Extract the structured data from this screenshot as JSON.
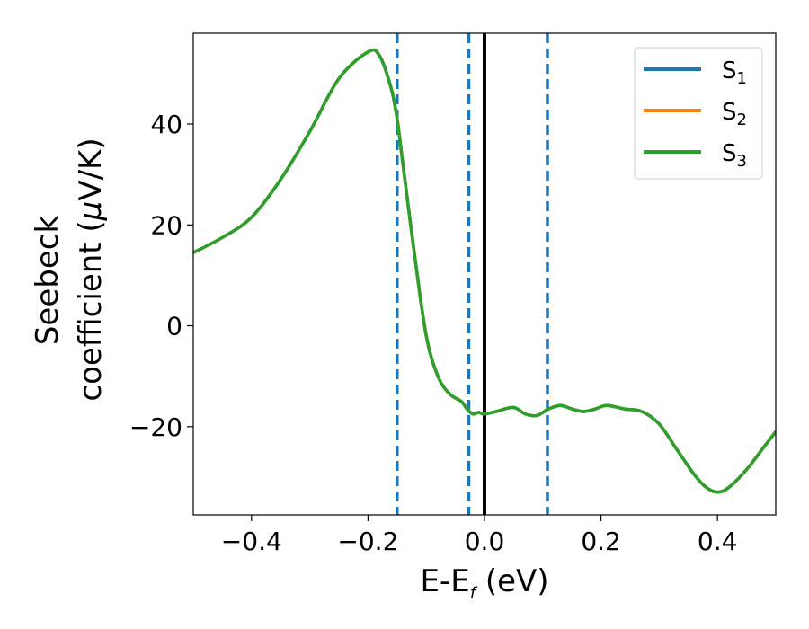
{
  "chart_data": {
    "type": "line",
    "xlabel": {
      "main": "E-E",
      "sub": "f",
      "tail": " (eV)"
    },
    "ylabel": {
      "line1": "Seebeck",
      "line2_main": "coefficient  (",
      "line2_mu": "μ",
      "line2_tail": "V/K)"
    },
    "xlim": [
      -0.5,
      0.5
    ],
    "ylim": [
      -37.5,
      58
    ],
    "xticks": [
      -0.4,
      -0.2,
      0.0,
      0.2,
      0.4
    ],
    "xtick_labels": [
      "−0.4",
      "−0.2",
      "0.0",
      "0.2",
      "0.4"
    ],
    "yticks": [
      -20,
      0,
      20,
      40
    ],
    "ytick_labels": [
      "−20",
      "0",
      "20",
      "40"
    ],
    "grid": false,
    "legend_placement": "top-right",
    "vlines": [
      {
        "x": -0.15,
        "style": "dashed",
        "color": "#1f77b4"
      },
      {
        "x": -0.027,
        "style": "dashed",
        "color": "#1f77b4"
      },
      {
        "x": 0.0,
        "style": "solid",
        "color": "#000000"
      },
      {
        "x": 0.108,
        "style": "dashed",
        "color": "#1f77b4"
      }
    ],
    "x": [
      -0.5,
      -0.45,
      -0.4,
      -0.35,
      -0.3,
      -0.25,
      -0.2,
      -0.18,
      -0.16,
      -0.15,
      -0.14,
      -0.12,
      -0.1,
      -0.08,
      -0.06,
      -0.04,
      -0.03,
      -0.02,
      -0.01,
      0.0,
      0.02,
      0.05,
      0.07,
      0.09,
      0.11,
      0.13,
      0.15,
      0.17,
      0.19,
      0.21,
      0.24,
      0.27,
      0.3,
      0.33,
      0.36,
      0.38,
      0.4,
      0.42,
      0.45,
      0.48,
      0.5
    ],
    "series": [
      {
        "name": {
          "main": "S",
          "sub": "1"
        },
        "color": "#1f77b4",
        "values": [
          14.5,
          17.5,
          21.5,
          29,
          38.5,
          49,
          54.3,
          53.5,
          47,
          41,
          32,
          14,
          -2,
          -10,
          -13.5,
          -15,
          -16.5,
          -17.5,
          -17.2,
          -17.5,
          -17,
          -16.2,
          -17.5,
          -17.8,
          -16.5,
          -15.8,
          -16.5,
          -17,
          -16.5,
          -15.8,
          -16.5,
          -17,
          -19.5,
          -24.5,
          -29.5,
          -32,
          -33,
          -32,
          -28.5,
          -24,
          -21
        ]
      },
      {
        "name": {
          "main": "S",
          "sub": "2"
        },
        "color": "#ff7f0e",
        "values": [
          14.5,
          17.5,
          21.5,
          29,
          38.5,
          49,
          54.3,
          53.5,
          47,
          41,
          32,
          14,
          -2,
          -10,
          -13.5,
          -15,
          -16.5,
          -17.5,
          -17.2,
          -17.5,
          -17,
          -16.2,
          -17.5,
          -17.8,
          -16.5,
          -15.8,
          -16.5,
          -17,
          -16.5,
          -15.8,
          -16.5,
          -17,
          -19.5,
          -24.5,
          -29.5,
          -32,
          -33,
          -32,
          -28.5,
          -24,
          -21
        ]
      },
      {
        "name": {
          "main": "S",
          "sub": "3"
        },
        "color": "#2ca02c",
        "values": [
          14.5,
          17.5,
          21.5,
          29,
          38.5,
          49,
          54.3,
          53.5,
          47,
          41,
          32,
          14,
          -2,
          -10,
          -13.5,
          -15,
          -16.5,
          -17.5,
          -17.2,
          -17.5,
          -17,
          -16.2,
          -17.5,
          -17.8,
          -16.5,
          -15.8,
          -16.5,
          -17,
          -16.5,
          -15.8,
          -16.5,
          -17,
          -19.5,
          -24.5,
          -29.5,
          -32,
          -33,
          -32,
          -28.5,
          -24,
          -21
        ]
      }
    ]
  }
}
